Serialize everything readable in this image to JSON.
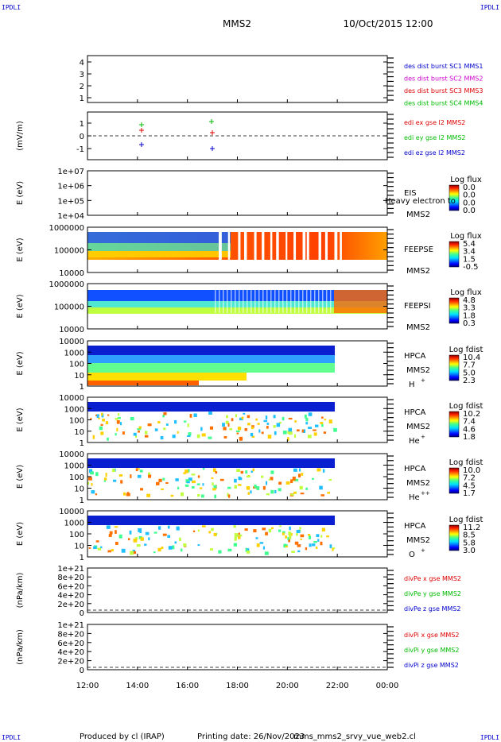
{
  "header": {
    "corner_left_top": "IPDLI",
    "corner_right_top": "IPDLI",
    "title": "MMS2",
    "datetime": "10/Oct/2015 12:00",
    "corner_left_bottom": "IPDLI",
    "corner_right_bottom": "IPDLI"
  },
  "footer": {
    "produced": "Produced by cl (IRAP)",
    "printing": "Printing date: 26/Nov/2023",
    "file": "mms_mms2_srvy_vue_web2.cl"
  },
  "colors": {
    "blue": "#0000cc",
    "magenta": "#cc00cc",
    "red": "#dd0000",
    "green": "#00bb00"
  },
  "chart_data": [
    {
      "type": "line",
      "panel": "burst",
      "ylabel": "",
      "yticks": [
        "1",
        "2",
        "3",
        "4"
      ],
      "ylim": [
        0.7,
        4.4
      ],
      "legend": [
        {
          "text": "des dist burst SC1 MMS1",
          "color": "#0000cc"
        },
        {
          "text": "des dist burst SC2 MMS2",
          "color": "#cc00cc"
        },
        {
          "text": "des dist burst SC3 MMS3",
          "color": "#dd0000"
        },
        {
          "text": "des dist burst SC4 MMS4",
          "color": "#00bb00"
        }
      ]
    },
    {
      "type": "scatter",
      "panel": "edi",
      "ylabel": "(mV/m)",
      "yticks": [
        "1",
        "0",
        "-1"
      ],
      "ylim": [
        -2,
        2
      ],
      "legend": [
        {
          "text": "edi ex gse l2 MMS2",
          "color": "#dd0000"
        },
        {
          "text": "edi ey gse l2 MMS2",
          "color": "#00bb00"
        },
        {
          "text": "edi ez gse l2 MMS2",
          "color": "#0000cc"
        }
      ]
    },
    {
      "type": "heatmap",
      "panel": "eis",
      "ylabel": "E (eV)",
      "yticks": [
        "1e+07",
        "1e+06",
        "1e+05",
        "1e+04"
      ],
      "instrument": "EIS",
      "sc": "MMS2",
      "overlay": "Heavy electron to",
      "cbar_title": "Log flux",
      "cbar_values": [
        "0.0",
        "0.0",
        "0.0",
        "0.0"
      ]
    },
    {
      "type": "heatmap",
      "panel": "feepse",
      "ylabel": "E (eV)",
      "yticks": [
        "1000000",
        "100000",
        "10000"
      ],
      "instrument": "FEEPSE",
      "sc": "MMS2",
      "cbar_title": "Log flux",
      "cbar_values": [
        "5.4",
        "3.4",
        "1.5",
        "-0.5"
      ]
    },
    {
      "type": "heatmap",
      "panel": "feepsi",
      "ylabel": "E (eV)",
      "yticks": [
        "1000000",
        "100000",
        "10000"
      ],
      "instrument": "FEEPSI",
      "sc": "MMS2",
      "cbar_title": "Log flux",
      "cbar_values": [
        "4.8",
        "3.3",
        "1.8",
        "0.3"
      ]
    },
    {
      "type": "heatmap",
      "panel": "hpca-h",
      "ylabel": "E (eV)",
      "yticks": [
        "10000",
        "1000",
        "100",
        "10",
        "1"
      ],
      "instrument": "HPCA",
      "sc": "MMS2",
      "species": "H",
      "charge": "+",
      "cbar_title": "Log fdist",
      "cbar_values": [
        "10.4",
        "7.7",
        "5.0",
        "2.3"
      ]
    },
    {
      "type": "heatmap",
      "panel": "hpca-he1",
      "ylabel": "E (eV)",
      "yticks": [
        "10000",
        "1000",
        "100",
        "10",
        "1"
      ],
      "instrument": "HPCA",
      "sc": "MMS2",
      "species": "He",
      "charge": "+",
      "cbar_title": "Log fdist",
      "cbar_values": [
        "10.2",
        "7.4",
        "4.6",
        "1.8"
      ]
    },
    {
      "type": "heatmap",
      "panel": "hpca-he2",
      "ylabel": "E (eV)",
      "yticks": [
        "10000",
        "1000",
        "100",
        "10",
        "1"
      ],
      "instrument": "HPCA",
      "sc": "MMS2",
      "species": "He",
      "charge": "++",
      "cbar_title": "Log fdist",
      "cbar_values": [
        "10.0",
        "7.2",
        "4.5",
        "1.7"
      ]
    },
    {
      "type": "heatmap",
      "panel": "hpca-o",
      "ylabel": "E (eV)",
      "yticks": [
        "10000",
        "1000",
        "100",
        "10",
        "1"
      ],
      "instrument": "HPCA",
      "sc": "MMS2",
      "species": "O",
      "charge": "+",
      "cbar_title": "Log fdist",
      "cbar_values": [
        "11.2",
        "8.5",
        "5.8",
        "3.0"
      ]
    },
    {
      "type": "line",
      "panel": "divpe",
      "ylabel": "(nPa/km)",
      "yticks": [
        "1e+21",
        "8e+20",
        "6e+20",
        "4e+20",
        "2e+20",
        "0"
      ],
      "legend": [
        {
          "text": "divPe x gse MMS2",
          "color": "#dd0000"
        },
        {
          "text": "divPe y gse MMS2",
          "color": "#00bb00"
        },
        {
          "text": "divPe z gse MMS2",
          "color": "#0000cc"
        }
      ]
    },
    {
      "type": "line",
      "panel": "divpi",
      "ylabel": "(nPa/km)",
      "yticks": [
        "1e+21",
        "8e+20",
        "6e+20",
        "4e+20",
        "2e+20",
        "0"
      ],
      "legend": [
        {
          "text": "divPi x gse MMS2",
          "color": "#dd0000"
        },
        {
          "text": "divPi y gse MMS2",
          "color": "#00bb00"
        },
        {
          "text": "divPi z gse MMS2",
          "color": "#0000cc"
        }
      ]
    }
  ],
  "xaxis": {
    "ticks": [
      "12:00",
      "14:00",
      "16:00",
      "18:00",
      "20:00",
      "22:00",
      "00:00"
    ]
  }
}
